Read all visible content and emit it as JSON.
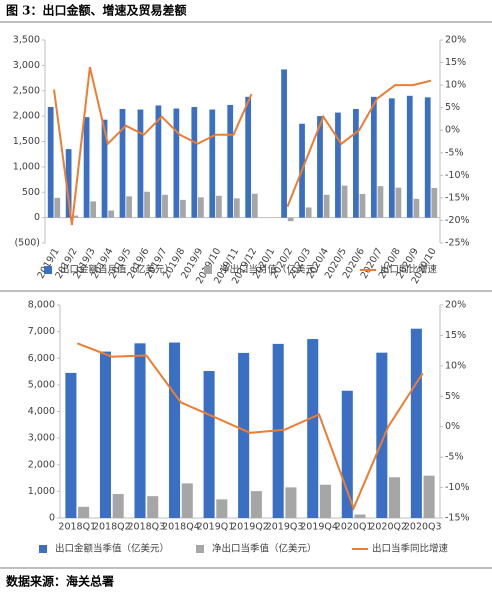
{
  "figure_title": "图 3：出口金额、增速及贸易差额",
  "source": "数据来源：海关总署",
  "chart_data": [
    {
      "type": "bar",
      "categories": [
        "2019/1",
        "2019/2",
        "2019/3",
        "2019/4",
        "2019/5",
        "2019/6",
        "2019/7",
        "2019/8",
        "2019/9",
        "2019/10",
        "2019/11",
        "2019/12",
        "2020/1",
        "2020/2",
        "2020/3",
        "2020/4",
        "2020/5",
        "2020/6",
        "2020/7",
        "2020/8",
        "2020/9",
        "2020/10"
      ],
      "series": [
        {
          "name": "出口金额当月值（亿美元）",
          "type": "bar",
          "color": "#3a6fc4",
          "values": [
            2180,
            1350,
            1980,
            1930,
            2140,
            2130,
            2210,
            2150,
            2180,
            2130,
            2220,
            2380,
            null,
            2920,
            1850,
            2000,
            2070,
            2140,
            2380,
            2350,
            2400,
            2370
          ]
        },
        {
          "name": "净出口当月值（亿美元）",
          "type": "bar",
          "color": "#a6a6a6",
          "values": [
            390,
            40,
            320,
            140,
            420,
            510,
            450,
            350,
            400,
            430,
            380,
            470,
            null,
            -70,
            200,
            450,
            630,
            465,
            620,
            590,
            370,
            585
          ]
        },
        {
          "name": "出口同比增速",
          "type": "line",
          "axis": "y2",
          "color": "#ed7d31",
          "values": [
            9,
            -21,
            14,
            -3,
            1,
            -1,
            3,
            -1,
            -3,
            -1,
            -1,
            8,
            null,
            -17,
            -7,
            3,
            -3,
            0,
            7,
            10,
            10,
            11
          ]
        }
      ],
      "ylim": [
        -500,
        3500
      ],
      "yticks": [
        {
          "value": -500,
          "label": "(500)"
        },
        0,
        {
          "value": 500,
          "label": "500"
        },
        {
          "value": 1000,
          "label": "1,000"
        },
        {
          "value": 1500,
          "label": "1,500"
        },
        {
          "value": 2000,
          "label": "2,000"
        },
        {
          "value": 2500,
          "label": "2,500"
        },
        {
          "value": 3000,
          "label": "3,000"
        },
        {
          "value": 3500,
          "label": "3,500"
        }
      ],
      "y2lim": [
        -25,
        20
      ],
      "y2ticks": [
        {
          "value": -25,
          "label": "-25%"
        },
        {
          "value": -20,
          "label": "-20%"
        },
        {
          "value": -15,
          "label": "-15%"
        },
        {
          "value": -10,
          "label": "-10%"
        },
        {
          "value": -5,
          "label": "-5%"
        },
        {
          "value": 0,
          "label": "0%"
        },
        {
          "value": 5,
          "label": "5%"
        },
        {
          "value": 10,
          "label": "10%"
        },
        {
          "value": 15,
          "label": "15%"
        },
        {
          "value": 20,
          "label": "20%"
        }
      ]
    },
    {
      "type": "bar",
      "categories": [
        "2018Q1",
        "2018Q2",
        "2018Q3",
        "2018Q4",
        "2019Q1",
        "2019Q2",
        "2019Q3",
        "2019Q4",
        "2020Q1",
        "2020Q2",
        "2020Q3"
      ],
      "series": [
        {
          "name": "出口金额当季值（亿美元）",
          "type": "bar",
          "color": "#3a6fc4",
          "values": [
            5450,
            6250,
            6560,
            6590,
            5520,
            6200,
            6540,
            6720,
            4780,
            6210,
            7110
          ]
        },
        {
          "name": "净出口当季值（亿美元）",
          "type": "bar",
          "color": "#a6a6a6",
          "values": [
            420,
            900,
            820,
            1300,
            700,
            1010,
            1150,
            1250,
            130,
            1530,
            1590
          ]
        },
        {
          "name": "出口当季同比增速",
          "type": "line",
          "axis": "y2",
          "color": "#ed7d31",
          "values": [
            13.7,
            11.5,
            11.7,
            4,
            1.5,
            -1,
            -0.5,
            2,
            -13.4,
            0,
            8.8
          ]
        }
      ],
      "ylim": [
        0,
        8000
      ],
      "yticks": [
        0,
        {
          "value": 1000,
          "label": "1,000"
        },
        {
          "value": 2000,
          "label": "2,000"
        },
        {
          "value": 3000,
          "label": "3,000"
        },
        {
          "value": 4000,
          "label": "4,000"
        },
        {
          "value": 5000,
          "label": "5,000"
        },
        {
          "value": 6000,
          "label": "6,000"
        },
        {
          "value": 7000,
          "label": "7,000"
        },
        {
          "value": 8000,
          "label": "8,000"
        }
      ],
      "y2lim": [
        -15,
        20
      ],
      "y2ticks": [
        {
          "value": -15,
          "label": "-15%"
        },
        {
          "value": -10,
          "label": "-10%"
        },
        {
          "value": -5,
          "label": "-5%"
        },
        {
          "value": 0,
          "label": "0%"
        },
        {
          "value": 5,
          "label": "5%"
        },
        {
          "value": 10,
          "label": "10%"
        },
        {
          "value": 15,
          "label": "15%"
        },
        {
          "value": 20,
          "label": "20%"
        }
      ]
    }
  ]
}
